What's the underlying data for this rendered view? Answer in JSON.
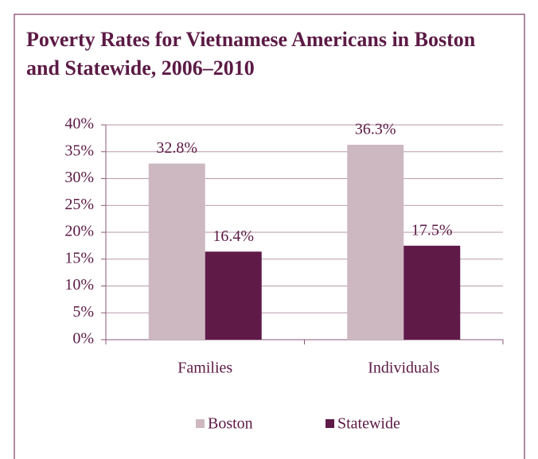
{
  "chart_data": {
    "type": "bar",
    "title": "Poverty Rates for Vietnamese Americans in Boston and Statewide, 2006–2010",
    "categories": [
      "Families",
      "Individuals"
    ],
    "series": [
      {
        "name": "Boston",
        "color": "#cdb8c1",
        "values": [
          32.8,
          36.3
        ],
        "value_labels": [
          "32.8%",
          "36.3%"
        ]
      },
      {
        "name": "Statewide",
        "color": "#5f1a48",
        "values": [
          16.4,
          17.5
        ],
        "value_labels": [
          "16.4%",
          "17.5%"
        ]
      }
    ],
    "ylim": [
      0,
      40
    ],
    "yticks": [
      {
        "value": 0,
        "label": "0%"
      },
      {
        "value": 5,
        "label": "5%"
      },
      {
        "value": 10,
        "label": "10%"
      },
      {
        "value": 15,
        "label": "15%"
      },
      {
        "value": 20,
        "label": "20%"
      },
      {
        "value": 25,
        "label": "25%"
      },
      {
        "value": 30,
        "label": "30%"
      },
      {
        "value": 35,
        "label": "35%"
      },
      {
        "value": 40,
        "label": "40%"
      }
    ],
    "grid": true
  }
}
